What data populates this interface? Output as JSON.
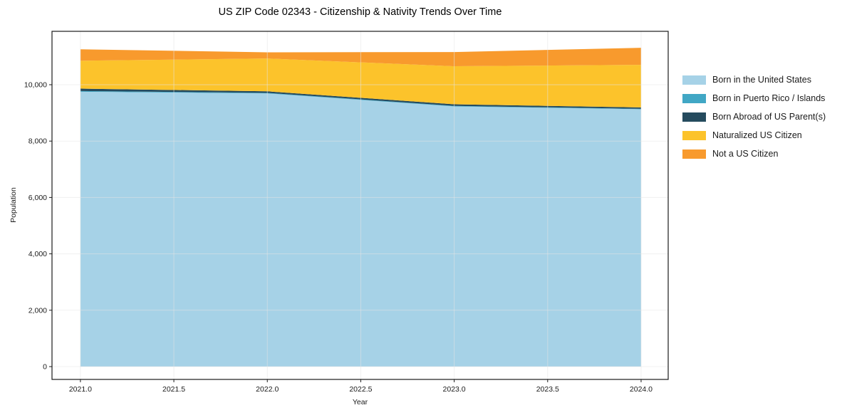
{
  "chart_data": {
    "type": "area",
    "stacked": true,
    "title": "US ZIP Code 02343 - Citizenship & Nativity Trends Over Time",
    "xlabel": "Year",
    "ylabel": "Population",
    "x": [
      2021,
      2022,
      2023,
      2024
    ],
    "series": [
      {
        "name": "Born in the United States",
        "color": "#a6d2e7",
        "values": [
          9750,
          9690,
          9230,
          9130
        ]
      },
      {
        "name": "Born in Puerto Rico / Islands",
        "color": "#41a7c5",
        "values": [
          25,
          20,
          20,
          15
        ]
      },
      {
        "name": "Born Abroad of US Parent(s)",
        "color": "#254b5e",
        "values": [
          85,
          55,
          55,
          50
        ]
      },
      {
        "name": "Naturalized US Citizen",
        "color": "#fcc32b",
        "values": [
          990,
          1165,
          1350,
          1510
        ]
      },
      {
        "name": "Not a US Citizen",
        "color": "#f89a2d",
        "values": [
          405,
          220,
          505,
          605
        ]
      }
    ],
    "totals": [
      11255,
      11150,
      11160,
      11310
    ],
    "xticks": [
      2021.0,
      2021.5,
      2022.0,
      2022.5,
      2023.0,
      2023.5,
      2024.0
    ],
    "xtick_labels": [
      "2021.0",
      "2021.5",
      "2022.0",
      "2022.5",
      "2023.0",
      "2023.5",
      "2024.0"
    ],
    "yticks": [
      0,
      2000,
      4000,
      6000,
      8000,
      10000
    ],
    "ytick_labels": [
      "0",
      "2,000",
      "4,000",
      "6,000",
      "8,000",
      "10,000"
    ],
    "xlim": [
      2020.848,
      2024.145
    ],
    "ylim": [
      -455,
      11894
    ],
    "grid": true,
    "grid_color": "#e4e4e4",
    "frame_color": "#1a1a1a",
    "text_color": "#1a1a1a",
    "legend_position": "outside-right-top"
  }
}
